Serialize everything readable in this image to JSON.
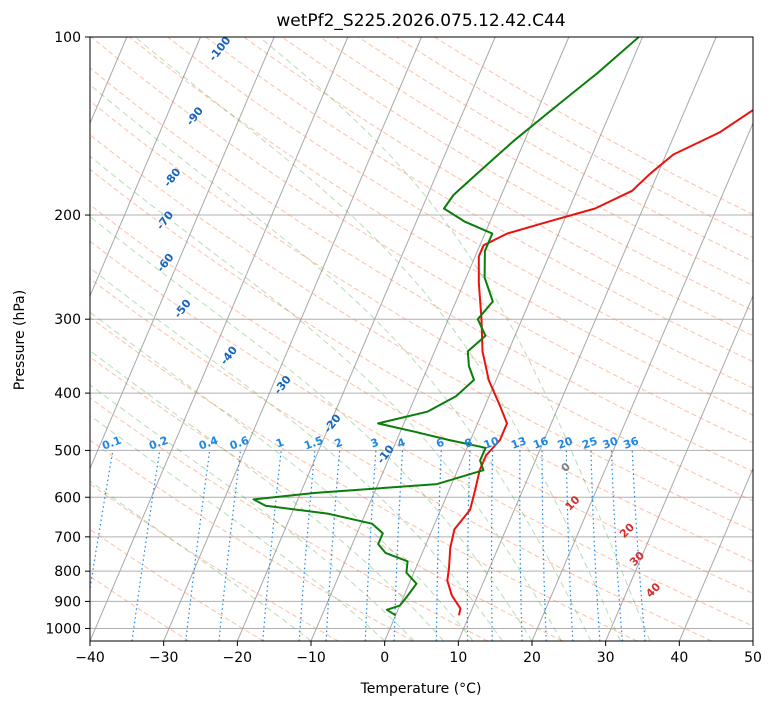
{
  "chart_data": {
    "type": "line",
    "title": "wetPf2_S225.2026.075.12.42.C44",
    "xlabel": "Temperature (°C)",
    "ylabel": "Pressure (hPa)",
    "xlim": [
      -40,
      50
    ],
    "ylim": [
      1050,
      100
    ],
    "y_scale": "log",
    "x_ticks": [
      -40,
      -30,
      -20,
      -10,
      0,
      10,
      20,
      30,
      40,
      50
    ],
    "y_ticks": [
      100,
      200,
      300,
      400,
      500,
      600,
      700,
      800,
      900,
      1000
    ],
    "grid": true,
    "skew_note": "Skew-T diagram",
    "colors": {
      "temperature": "#e8130e",
      "dewpoint": "#0a7d0a",
      "isotherm": "#7f7f7f",
      "dry_adiabat": "#ff7f50",
      "moist_adiabat": "#2ca02c",
      "mixing_ratio": "#1e88e5",
      "theta_e_label": "#1565c0",
      "theta_label_red": "#d32f2f"
    },
    "series": [
      {
        "name": "Temperature",
        "points": [
          {
            "p": 950,
            "t": 8.6
          },
          {
            "p": 925,
            "t": 8.4
          },
          {
            "p": 880,
            "t": 6.5
          },
          {
            "p": 830,
            "t": 5.0
          },
          {
            "p": 790,
            "t": 4.5
          },
          {
            "p": 730,
            "t": 3.5
          },
          {
            "p": 680,
            "t": 3.0
          },
          {
            "p": 630,
            "t": 4.0
          },
          {
            "p": 580,
            "t": 3.5
          },
          {
            "p": 540,
            "t": 3.0
          },
          {
            "p": 510,
            "t": 3.0
          },
          {
            "p": 480,
            "t": 4.0
          },
          {
            "p": 450,
            "t": 4.0
          },
          {
            "p": 420,
            "t": 2.0
          },
          {
            "p": 380,
            "t": -1.0
          },
          {
            "p": 340,
            "t": -3.5
          },
          {
            "p": 300,
            "t": -5.5
          },
          {
            "p": 260,
            "t": -8.0
          },
          {
            "p": 235,
            "t": -9.5
          },
          {
            "p": 225,
            "t": -9.5
          },
          {
            "p": 215,
            "t": -7.0
          },
          {
            "p": 205,
            "t": -2.0
          },
          {
            "p": 195,
            "t": 3.5
          },
          {
            "p": 182,
            "t": 7.5
          },
          {
            "p": 170,
            "t": 9.0
          },
          {
            "p": 158,
            "t": 11.0
          },
          {
            "p": 145,
            "t": 16.0
          },
          {
            "p": 132,
            "t": 19.5
          },
          {
            "p": 120,
            "t": 22.0
          },
          {
            "p": 110,
            "t": 26.0
          },
          {
            "p": 100,
            "t": 29.5
          }
        ]
      },
      {
        "name": "Dewpoint",
        "points": [
          {
            "p": 950,
            "t": 0.0
          },
          {
            "p": 930,
            "t": -1.5
          },
          {
            "p": 915,
            "t": 0.0
          },
          {
            "p": 880,
            "t": 0.5
          },
          {
            "p": 840,
            "t": 1.0
          },
          {
            "p": 805,
            "t": -1.0
          },
          {
            "p": 770,
            "t": -1.5
          },
          {
            "p": 745,
            "t": -5.0
          },
          {
            "p": 720,
            "t": -6.5
          },
          {
            "p": 690,
            "t": -6.5
          },
          {
            "p": 665,
            "t": -8.5
          },
          {
            "p": 640,
            "t": -15.0
          },
          {
            "p": 620,
            "t": -24.0
          },
          {
            "p": 605,
            "t": -26.0
          },
          {
            "p": 590,
            "t": -18.0
          },
          {
            "p": 570,
            "t": -2.0
          },
          {
            "p": 540,
            "t": 3.5
          },
          {
            "p": 520,
            "t": 2.5
          },
          {
            "p": 495,
            "t": 2.5
          },
          {
            "p": 480,
            "t": -3.0
          },
          {
            "p": 465,
            "t": -8.0
          },
          {
            "p": 450,
            "t": -13.5
          },
          {
            "p": 430,
            "t": -7.5
          },
          {
            "p": 405,
            "t": -4.5
          },
          {
            "p": 380,
            "t": -3.0
          },
          {
            "p": 360,
            "t": -4.5
          },
          {
            "p": 340,
            "t": -5.5
          },
          {
            "p": 320,
            "t": -4.0
          },
          {
            "p": 300,
            "t": -6.0
          },
          {
            "p": 280,
            "t": -5.0
          },
          {
            "p": 255,
            "t": -7.5
          },
          {
            "p": 230,
            "t": -9.0
          },
          {
            "p": 215,
            "t": -9.0
          },
          {
            "p": 205,
            "t": -13.5
          },
          {
            "p": 195,
            "t": -17.0
          },
          {
            "p": 185,
            "t": -16.5
          },
          {
            "p": 170,
            "t": -14.5
          },
          {
            "p": 150,
            "t": -11.5
          },
          {
            "p": 130,
            "t": -7.5
          },
          {
            "p": 115,
            "t": -4.0
          },
          {
            "p": 100,
            "t": -0.5
          }
        ]
      }
    ],
    "theta_e_labels": [
      "-100",
      "-90",
      "-80",
      "-70",
      "-60",
      "-50",
      "-40",
      "-30",
      "-20",
      "-10"
    ],
    "mixing_ratio_labels": [
      "0.1",
      "0.2",
      "0.4",
      "0.6",
      "1",
      "1.5",
      "2",
      "3",
      "4",
      "6",
      "8",
      "10",
      "13",
      "16",
      "20",
      "25",
      "30",
      "36"
    ],
    "theta_labels_gray": [
      "0"
    ],
    "theta_labels_red": [
      "10",
      "20",
      "30",
      "40"
    ]
  }
}
